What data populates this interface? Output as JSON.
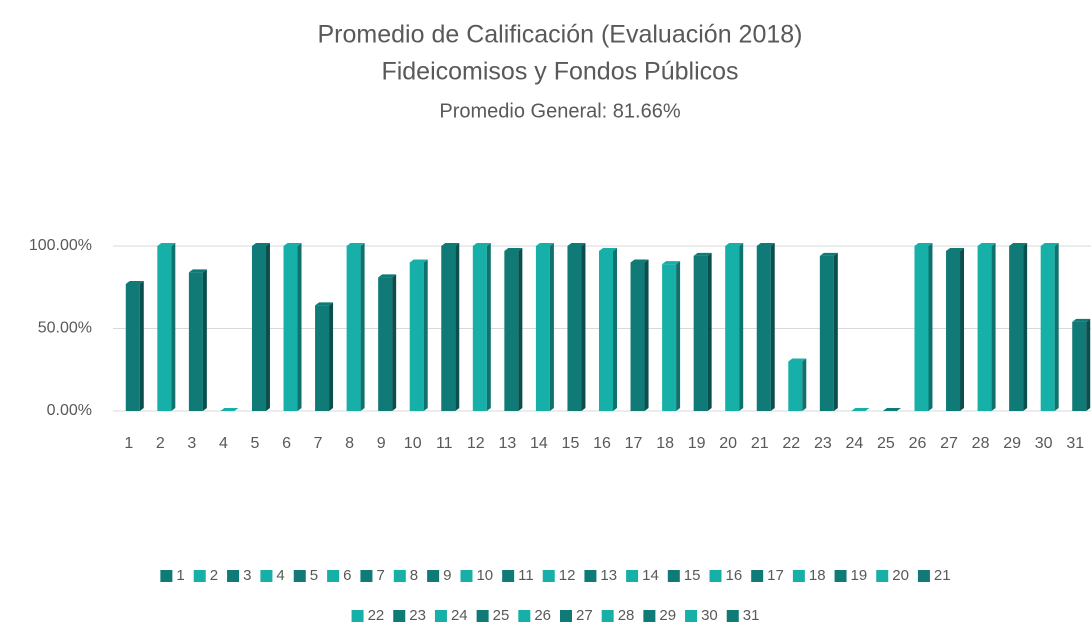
{
  "chart_data": {
    "type": "bar3d",
    "title": "Promedio de Calificación (Evaluación 2018)",
    "subtitle": "Fideicomisos y Fondos Públicos",
    "annotation": "Promedio General: 81.66%",
    "categories": [
      "1",
      "2",
      "3",
      "4",
      "5",
      "6",
      "7",
      "8",
      "9",
      "10",
      "11",
      "12",
      "13",
      "14",
      "15",
      "16",
      "17",
      "18",
      "19",
      "20",
      "21",
      "22",
      "23",
      "24",
      "25",
      "26",
      "27",
      "28",
      "29",
      "30",
      "31"
    ],
    "values": [
      77,
      100,
      84,
      0,
      100,
      100,
      64,
      100,
      81,
      90,
      100,
      100,
      97,
      100,
      100,
      97,
      90,
      89,
      94,
      100,
      100,
      30,
      94,
      0,
      0,
      100,
      97,
      100,
      100,
      100,
      54
    ],
    "colors": [
      "#0f7a76",
      "#17b0a8",
      "#0f7a76",
      "#17b0a8",
      "#0f7a76",
      "#17b0a8",
      "#0f7a76",
      "#17b0a8",
      "#0f7a76",
      "#17b0a8",
      "#0f7a76",
      "#17b0a8",
      "#0f7a76",
      "#17b0a8",
      "#0f7a76",
      "#17b0a8",
      "#0f7a76",
      "#17b0a8",
      "#0f7a76",
      "#17b0a8",
      "#0f7a76",
      "#17b0a8",
      "#0f7a76",
      "#17b0a8",
      "#0f7a76",
      "#17b0a8",
      "#0f7a76",
      "#17b0a8",
      "#0f7a76",
      "#17b0a8",
      "#0f7a76"
    ],
    "ylim": [
      0,
      100
    ],
    "yticks": [
      {
        "value": 0,
        "label": "0.00%"
      },
      {
        "value": 50,
        "label": "50.00%"
      },
      {
        "value": 100,
        "label": "100.00%"
      }
    ],
    "grid": true,
    "legend": "bottom"
  }
}
